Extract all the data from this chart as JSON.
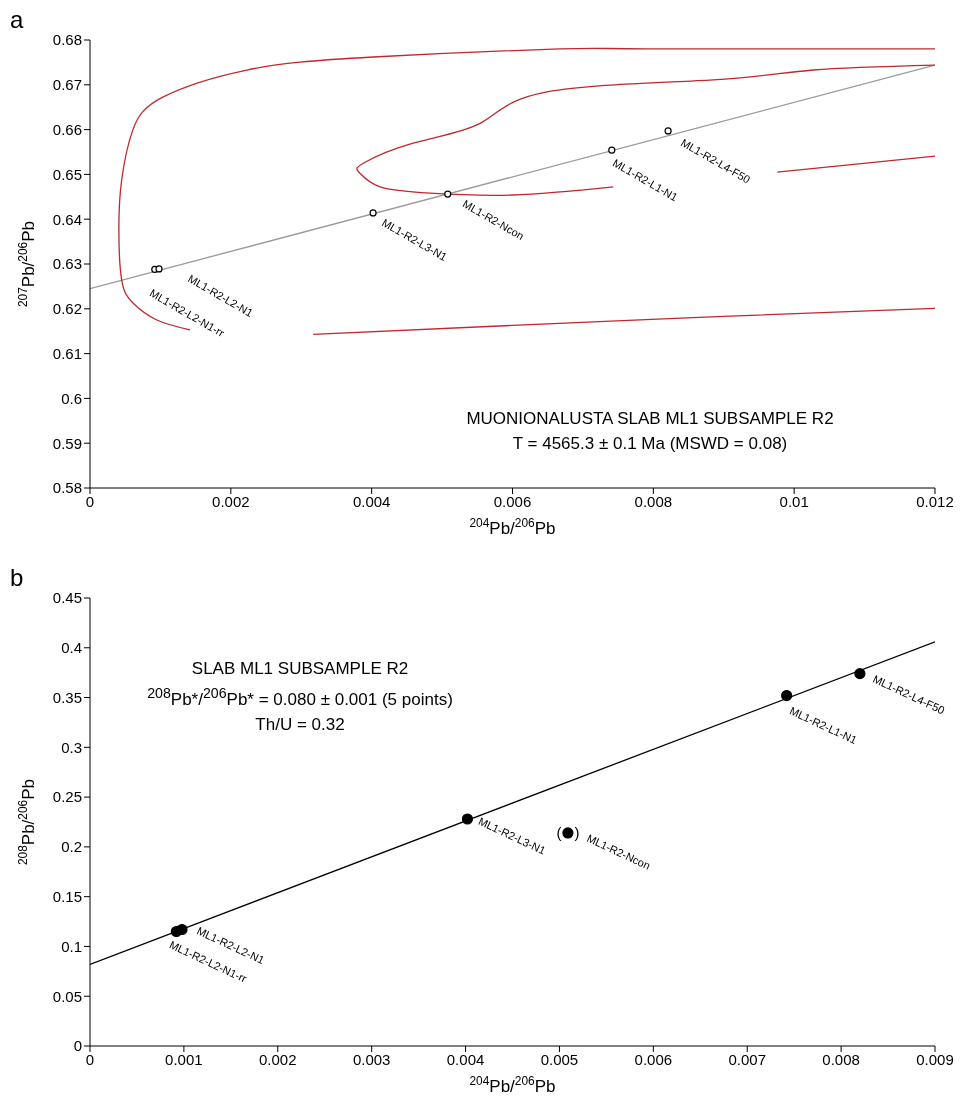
{
  "chart_data": [
    {
      "type": "scatter",
      "title": "a",
      "xlabel": "$^{204}$Pb/$^{206}$Pb",
      "ylabel": "$^{207}$Pb/$^{206}$Pb",
      "xlim": [
        0,
        0.012
      ],
      "ylim": [
        0.58,
        0.68
      ],
      "xticks": [
        0,
        0.002,
        0.004,
        0.006,
        0.008,
        0.01,
        0.012
      ],
      "yticks": [
        0.58,
        0.59,
        0.6,
        0.61,
        0.62,
        0.63,
        0.64,
        0.65,
        0.66,
        0.67,
        0.68
      ],
      "legend": false,
      "grid": false,
      "series": [
        {
          "type": "line",
          "color": "#999999",
          "x": [
            0,
            0.012
          ],
          "values": [
            0.6245,
            0.6744
          ]
        },
        {
          "type": "line",
          "color": "#c0282d",
          "x": [
            0.012,
            0.00791,
            0.00667,
            0.00402,
            0.00223,
            0.00104,
            0.00061,
            0.00045,
            0.00041,
            0.00045,
            0.00061,
            0.00095,
            0.00142
          ],
          "values": [
            0.678,
            0.678,
            0.678,
            0.6762,
            0.6733,
            0.6673,
            0.66,
            0.6488,
            0.6376,
            0.6264,
            0.6213,
            0.6175,
            0.6153
          ]
        },
        {
          "type": "line",
          "color": "#c0282d",
          "x": [
            0.00317,
            0.006,
            0.009,
            0.012
          ],
          "values": [
            0.6143,
            0.6163,
            0.6183,
            0.6201
          ]
        },
        {
          "type": "line",
          "color": "#c0282d",
          "x": [
            0.012,
            0.01027,
            0.00885,
            0.00649,
            0.00554,
            0.00459,
            0.00388,
            0.00383,
            0.00412,
            0.00483,
            0.00601,
            0.00743
          ],
          "values": [
            0.6744,
            0.6733,
            0.6711,
            0.6684,
            0.6614,
            0.657,
            0.6525,
            0.6503,
            0.6472,
            0.6458,
            0.6454,
            0.6472
          ]
        },
        {
          "type": "line",
          "color": "#c0282d",
          "x": [
            0.00976,
            0.012
          ],
          "values": [
            0.6505,
            0.6541
          ]
        },
        {
          "color": "#000000",
          "marker": "circle",
          "x": [
            0.00092,
            0.00098,
            0.00402,
            0.00508,
            0.00741,
            0.00821
          ],
          "values": [
            0.6288,
            0.6289,
            0.6414,
            0.6456,
            0.6554,
            0.6597
          ]
        }
      ],
      "annotations": [
        {
          "text": "ML1-R2-L2-N1",
          "x": 0.00098,
          "y": 0.6289
        },
        {
          "text": "ML1-R2-L2-N1-rr",
          "x": 0.00092,
          "y": 0.6288
        },
        {
          "text": "ML1-R2-L3-N1",
          "x": 0.00402,
          "y": 0.6414
        },
        {
          "text": "ML1-R2-Ncon",
          "x": 0.00508,
          "y": 0.6456
        },
        {
          "text": "ML1-R2-L1-N1",
          "x": 0.00741,
          "y": 0.6554
        },
        {
          "text": "ML1-R2-L4-F50",
          "x": 0.00821,
          "y": 0.6597
        },
        "MUONIONALUSTA SLAB ML1 SUBSAMPLE R2",
        "T = 4565.3 ± 0.1 Ma (MSWD = 0.08)"
      ]
    },
    {
      "type": "scatter",
      "title": "b",
      "xlabel": "$^{204}$Pb/$^{206}$Pb",
      "ylabel": "$^{208}$Pb/$^{206}$Pb",
      "xlim": [
        0,
        0.009
      ],
      "ylim": [
        0,
        0.45
      ],
      "xticks": [
        0,
        0.001,
        0.002,
        0.003,
        0.004,
        0.005,
        0.006,
        0.007,
        0.008,
        0.009
      ],
      "yticks": [
        0,
        0.05,
        0.1,
        0.15,
        0.2,
        0.25,
        0.3,
        0.35,
        0.4,
        0.45
      ],
      "legend": false,
      "grid": false,
      "series": [
        {
          "type": "line",
          "color": "#000000",
          "x": [
            0,
            0.009
          ],
          "values": [
            0.082,
            0.406
          ]
        },
        {
          "color": "#000000",
          "marker": "circle",
          "x": [
            0.00092,
            0.00098,
            0.00402,
            0.00509,
            0.00742,
            0.0082
          ],
          "values": [
            0.115,
            0.117,
            0.228,
            0.214,
            0.352,
            0.374
          ]
        }
      ],
      "annotations": [
        {
          "text": "ML1-R2-L2-N1",
          "x": 0.00098,
          "y": 0.117
        },
        {
          "text": "ML1-R2-L2-N1-rr",
          "x": 0.00092,
          "y": 0.115
        },
        {
          "text": "ML1-R2-L3-N1",
          "x": 0.00402,
          "y": 0.228
        },
        {
          "text": "(",
          "x": 0.00509,
          "y": 0.214
        },
        {
          "text": ")",
          "x": 0.00509,
          "y": 0.214
        },
        {
          "text": "ML1-R2-Ncon",
          "x": 0.00509,
          "y": 0.214
        },
        {
          "text": "ML1-R2-L1-N1",
          "x": 0.00742,
          "y": 0.352
        },
        {
          "text": "ML1-R2-L4-F50",
          "x": 0.0082,
          "y": 0.374
        },
        "SLAB ML1 SUBSAMPLE R2",
        "$^{208}$Pb*/$^{206}$Pb* = 0.080 ± 0.001 (5 points)",
        "Th/U = 0.32"
      ]
    }
  ]
}
